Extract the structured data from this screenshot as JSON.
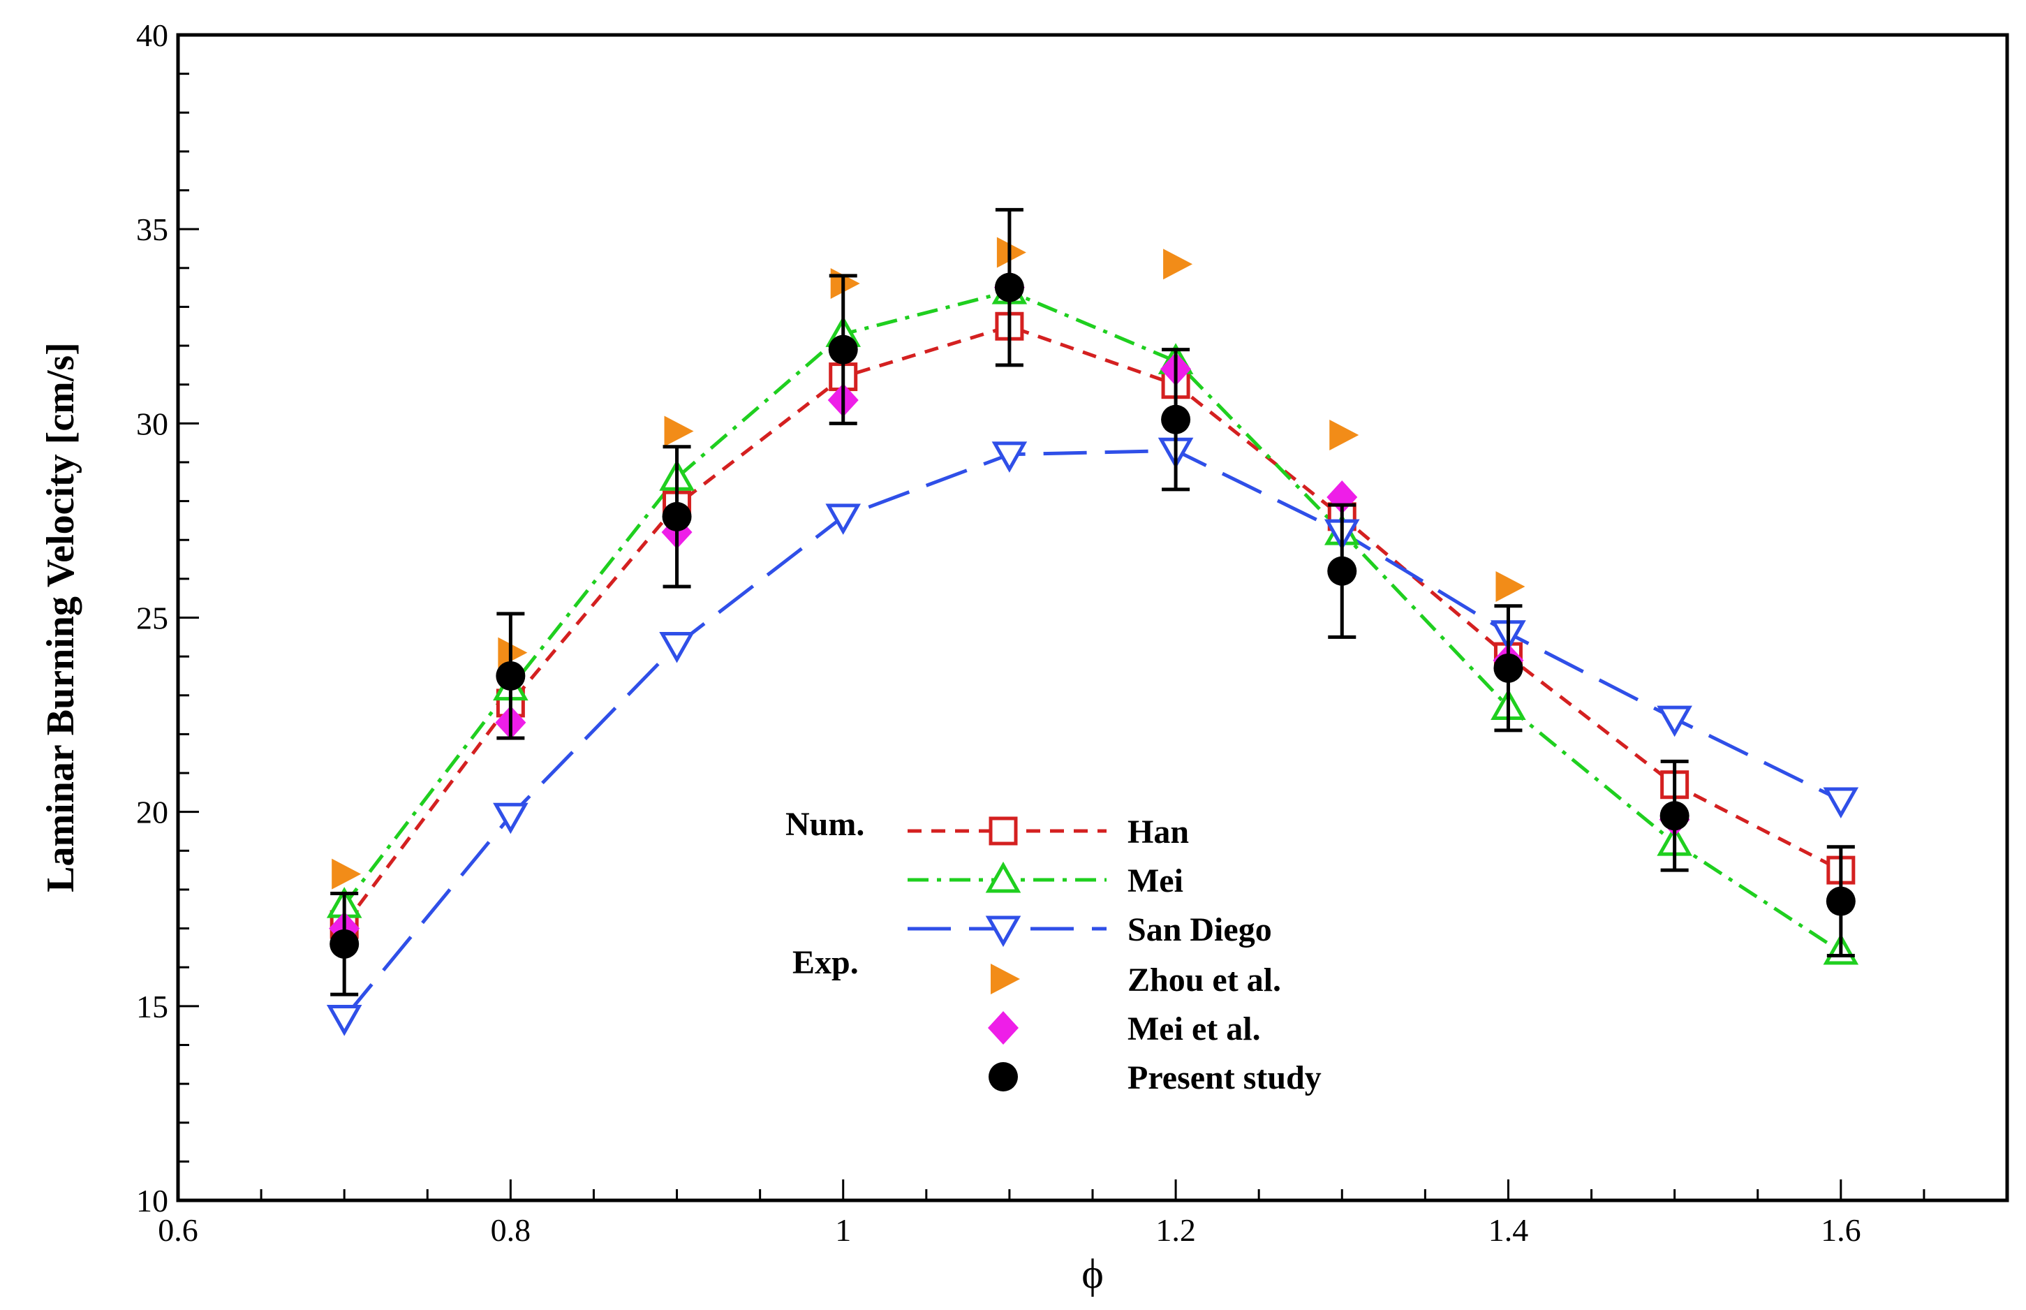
{
  "chart_data": {
    "type": "line",
    "title": "",
    "xlabel": "ϕ",
    "ylabel": "Laminar Burning Velocity [cm/s]",
    "xlim": [
      0.6,
      1.7
    ],
    "ylim": [
      10,
      40
    ],
    "xticks": [
      "0.6",
      "0.8",
      "1",
      "1.2",
      "1.4",
      "1.6"
    ],
    "xtick_values": [
      0.6,
      0.8,
      1.0,
      1.2,
      1.4,
      1.6
    ],
    "yticks": [
      "10",
      "15",
      "20",
      "25",
      "30",
      "35",
      "40"
    ],
    "ytick_values": [
      10,
      15,
      20,
      25,
      30,
      35,
      40
    ],
    "grid": false,
    "legend_position": "center-bottom",
    "legend": {
      "num_heading": "Num.",
      "exp_heading": "Exp."
    },
    "series": [
      {
        "name": "Han",
        "group": "Num.",
        "kind": "line",
        "color": "#d42020",
        "dash": "short-dash",
        "marker": "open-square",
        "x": [
          0.7,
          0.8,
          0.9,
          1.0,
          1.1,
          1.2,
          1.3,
          1.4,
          1.5,
          1.6
        ],
        "values": [
          17.1,
          22.8,
          27.9,
          31.2,
          32.5,
          31.0,
          27.6,
          24.0,
          20.7,
          18.5
        ]
      },
      {
        "name": "Mei",
        "group": "Num.",
        "kind": "line",
        "color": "#1fcf1f",
        "dash": "dash-dot",
        "marker": "open-triangle-up",
        "x": [
          0.7,
          0.8,
          0.9,
          1.0,
          1.1,
          1.2,
          1.3,
          1.4,
          1.5,
          1.6
        ],
        "values": [
          17.6,
          23.2,
          28.6,
          32.3,
          33.4,
          31.6,
          27.2,
          22.7,
          19.2,
          16.4
        ]
      },
      {
        "name": "San Diego",
        "group": "Num.",
        "kind": "line",
        "color": "#2f4fe8",
        "dash": "long-dash",
        "marker": "open-triangle-down",
        "x": [
          0.7,
          0.8,
          0.9,
          1.0,
          1.1,
          1.2,
          1.3,
          1.4,
          1.5,
          1.6
        ],
        "values": [
          14.7,
          19.9,
          24.3,
          27.6,
          29.2,
          29.3,
          27.2,
          24.6,
          22.4,
          20.3
        ]
      },
      {
        "name": "Zhou et al.",
        "group": "Exp.",
        "kind": "scatter",
        "color": "#f28c18",
        "marker": "filled-triangle-right",
        "x": [
          0.7,
          0.8,
          0.9,
          1.0,
          1.1,
          1.2,
          1.3,
          1.4
        ],
        "values": [
          18.4,
          24.1,
          29.8,
          33.6,
          34.4,
          34.1,
          29.7,
          25.8
        ]
      },
      {
        "name": "Mei et al.",
        "group": "Exp.",
        "kind": "scatter",
        "color": "#ee1ee8",
        "marker": "filled-diamond",
        "x": [
          0.7,
          0.8,
          0.9,
          1.0,
          1.1,
          1.2,
          1.3,
          1.4,
          1.5
        ],
        "values": [
          17.0,
          22.3,
          27.2,
          30.6,
          33.5,
          31.4,
          28.1,
          23.9,
          19.8
        ]
      },
      {
        "name": "Present study",
        "group": "Exp.",
        "kind": "scatter",
        "color": "#000000",
        "marker": "filled-circle",
        "x": [
          0.7,
          0.8,
          0.9,
          1.0,
          1.1,
          1.2,
          1.3,
          1.4,
          1.5,
          1.6
        ],
        "values": [
          16.6,
          23.5,
          27.6,
          31.9,
          33.5,
          30.1,
          26.2,
          23.7,
          19.9,
          17.7
        ],
        "error": [
          1.3,
          1.6,
          1.8,
          1.9,
          2.0,
          1.8,
          1.7,
          1.6,
          1.4,
          1.4
        ]
      }
    ]
  }
}
